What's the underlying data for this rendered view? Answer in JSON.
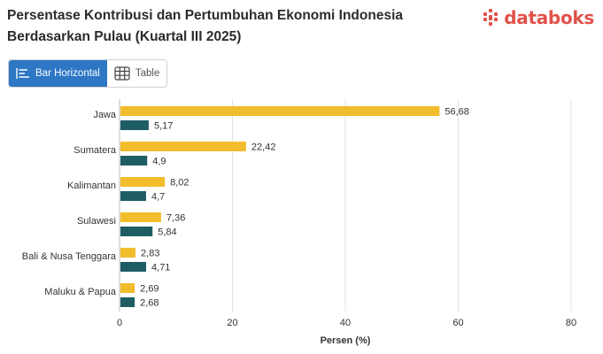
{
  "header": {
    "title": "Persentase Kontribusi dan Pertumbuhan Ekonomi Indonesia Berdasarkan Pulau (Kuartal III 2025)",
    "logo_text": "databoks"
  },
  "toggle": {
    "bar_label": "Bar Horizontal",
    "table_label": "Table",
    "bar_icon": "bar-list-icon",
    "table_icon": "table-grid-icon"
  },
  "colors": {
    "series1": "#f2bd2c",
    "series2": "#1e5d63",
    "accent": "#2d77c5",
    "logo": "#e1524a"
  },
  "chart_data": {
    "type": "bar",
    "orientation": "horizontal",
    "categories": [
      "Jawa",
      "Sumatera",
      "Kalimantan",
      "Sulawesi",
      "Bali & Nusa Tenggara",
      "Maluku & Papua"
    ],
    "series": [
      {
        "values": [
          56.68,
          22.42,
          8.02,
          7.36,
          2.83,
          2.69
        ],
        "value_labels": [
          "56,68",
          "22,42",
          "8,02",
          "7,36",
          "2,83",
          "2,69"
        ]
      },
      {
        "values": [
          5.17,
          4.9,
          4.7,
          5.84,
          4.71,
          2.68
        ],
        "value_labels": [
          "5,17",
          "4,9",
          "4,7",
          "5,84",
          "4,71",
          "2,68"
        ]
      }
    ],
    "xlabel": "Persen (%)",
    "xlim": [
      0,
      80
    ],
    "xticks": [
      0,
      20,
      40,
      60,
      80
    ],
    "grid": true
  }
}
